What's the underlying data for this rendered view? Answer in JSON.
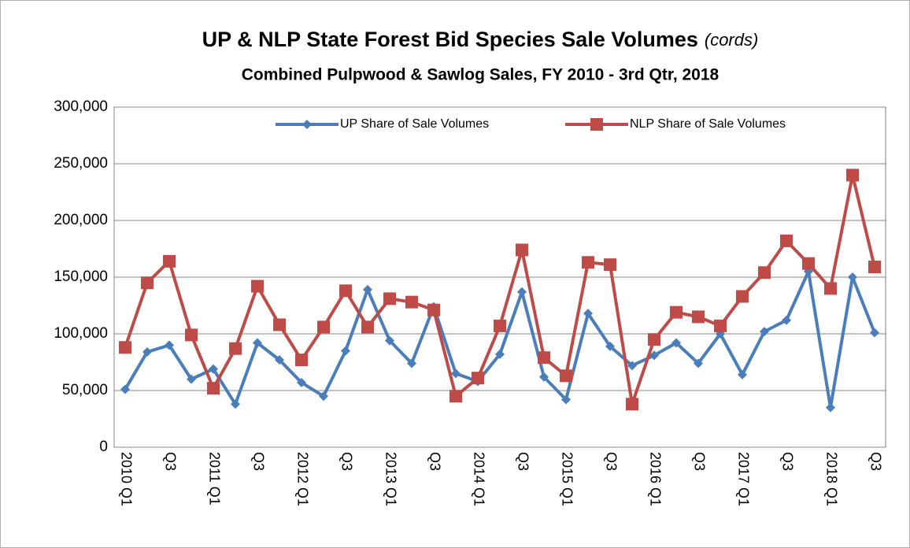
{
  "chart_data": {
    "type": "line",
    "title": "UP & NLP State Forest Bid Species  Sale Volumes",
    "title_unit": "(cords)",
    "subtitle": "Combined Pulpwood & Sawlog Sales, FY 2010 - 3rd Qtr, 2018",
    "categories": [
      "2010 Q1",
      null,
      "Q3",
      null,
      "2011 Q1",
      null,
      "Q3",
      null,
      "2012 Q1",
      null,
      "Q3",
      null,
      "2013 Q1",
      null,
      "Q3",
      null,
      "2014 Q1",
      null,
      "Q3",
      null,
      "2015 Q1",
      null,
      "Q3",
      null,
      "2016 Q1",
      null,
      "Q3",
      null,
      "2017 Q1",
      null,
      "Q3",
      null,
      "2018 Q1",
      null,
      "Q3"
    ],
    "series": [
      {
        "name": "UP Share of Sale Volumes",
        "color": "#4a7ebb",
        "marker": "diamond",
        "values": [
          51000,
          84000,
          90000,
          60000,
          69000,
          38000,
          92000,
          77000,
          57000,
          45000,
          85000,
          139000,
          94000,
          74000,
          124000,
          65000,
          58000,
          82000,
          137000,
          62000,
          42000,
          118000,
          89000,
          72000,
          81000,
          92000,
          74000,
          100000,
          64000,
          102000,
          112000,
          155000,
          35000,
          150000,
          101000
        ]
      },
      {
        "name": "NLP Share of Sale Volumes",
        "color": "#be4b48",
        "marker": "square",
        "values": [
          88000,
          145000,
          164000,
          99000,
          52000,
          87000,
          142000,
          108000,
          77000,
          106000,
          138000,
          106000,
          131000,
          128000,
          121000,
          45000,
          61000,
          107000,
          174000,
          79000,
          63000,
          163000,
          161000,
          38000,
          95000,
          119000,
          115000,
          107000,
          133000,
          154000,
          182000,
          162000,
          140000,
          240000,
          159000
        ]
      }
    ],
    "ylim": [
      0,
      300000
    ],
    "yticks": [
      0,
      {
        "value": 50000,
        "label": "50,000"
      },
      {
        "value": 100000,
        "label": "100,000"
      },
      {
        "value": 150000,
        "label": "150,000"
      },
      {
        "value": 200000,
        "label": "200,000"
      },
      {
        "value": 250000,
        "label": "250,000"
      },
      {
        "value": 300000,
        "label": "300,000"
      }
    ],
    "grid": true,
    "legend": "top"
  }
}
